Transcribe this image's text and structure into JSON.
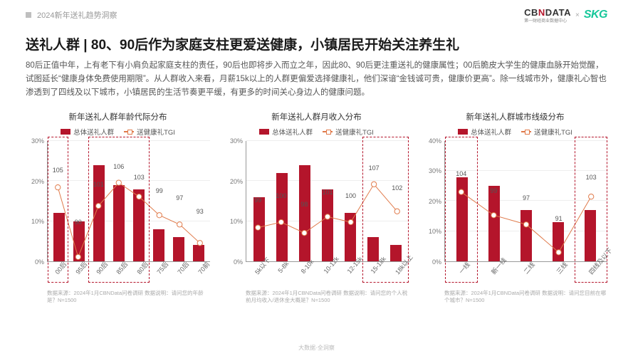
{
  "header": {
    "report_tag": "2024新年送礼趋势洞察",
    "logo_cbn_a": "CB",
    "logo_cbn_n": "N",
    "logo_cbn_b": "DATA",
    "logo_cbn_sub": "第一财经商业数据中心",
    "x": "×",
    "logo_skg": "SKG"
  },
  "title": "送礼人群 | 80、90后作为家庭支柱更爱送健康，小镇居民开始关注养生礼",
  "desc": "80后正值中年，上有老下有小肩负起家庭支柱的责任，90后也即将步入而立之年，因此80、90后更注重送礼的健康属性；00后脆皮大学生的健康血脉开始觉醒，试图延长“健康身体免费使用期限”。从人群收入来看，月薪15k以上的人群更偏爱选择健康礼，他们深谙“金钱诚可贵，健康价更高”。除一线城市外，健康礼心智也渗透到了四线及以下城市，小镇居民的生活节奏更平缓，有更多的时间关心身边人的健康问题。",
  "legend_bar": "总体送礼人群",
  "legend_line": "送健康礼TGI",
  "colors": {
    "bar": "#b4152b",
    "line": "#e07a4a",
    "highlight": "#b4152b",
    "grid": "#eeeeee",
    "axis": "#999999",
    "bg": "#ffffff"
  },
  "charts": [
    {
      "title": "新年送礼人群年龄代际分布",
      "ymax": 30,
      "yticks": [
        0,
        10,
        20,
        30
      ],
      "yfmt": "pct",
      "categories": [
        "00后",
        "95后",
        "90后",
        "85后",
        "80后",
        "75后",
        "70后",
        "70前"
      ],
      "bars": [
        12,
        10,
        24,
        19,
        18,
        8,
        6,
        4
      ],
      "line": [
        105,
        90,
        101,
        106,
        103,
        99,
        97,
        93
      ],
      "line_min": 80,
      "line_max": 115,
      "highlights": [
        [
          0,
          0
        ],
        [
          2,
          4
        ]
      ],
      "source": "数据来源：2024年1月CBNData问卷调研 数据说明：请问您的年龄是？N=1500"
    },
    {
      "title": "新年送礼人群月收入分布",
      "ymax": 30,
      "yticks": [
        0,
        10,
        20,
        30
      ],
      "yfmt": "pct",
      "categories": [
        "5k以下",
        "5-8k",
        "8-10k",
        "10-12k",
        "12-15k",
        "15-18k",
        "18k以上"
      ],
      "bars": [
        16,
        22,
        24,
        18,
        12,
        6,
        4
      ],
      "line": [
        99,
        100,
        98,
        101,
        100,
        107,
        102
      ],
      "line_min": 85,
      "line_max": 115,
      "highlights": [
        [
          5,
          6
        ]
      ],
      "source": "数据来源：2024年1月CBNData问卷调研 数据说明：请问您的个人税前月均收入/退休金大概是？N=1500"
    },
    {
      "title": "新年送礼人群城市线级分布",
      "ymax": 40,
      "yticks": [
        0,
        10,
        20,
        30,
        40
      ],
      "yfmt": "pct",
      "categories": [
        "一线",
        "新一线",
        "二线",
        "三线",
        "四线及以下"
      ],
      "bars": [
        28,
        25,
        17,
        13,
        17
      ],
      "line": [
        104,
        99,
        97,
        91,
        103
      ],
      "line_min": 80,
      "line_max": 115,
      "highlights": [
        [
          0,
          0
        ],
        [
          4,
          4
        ]
      ],
      "source": "数据来源：2024年1月CBNData问卷调研 数据说明：请问您目前在哪个城市？N=1500"
    }
  ],
  "footer": "大数据·全洞察"
}
